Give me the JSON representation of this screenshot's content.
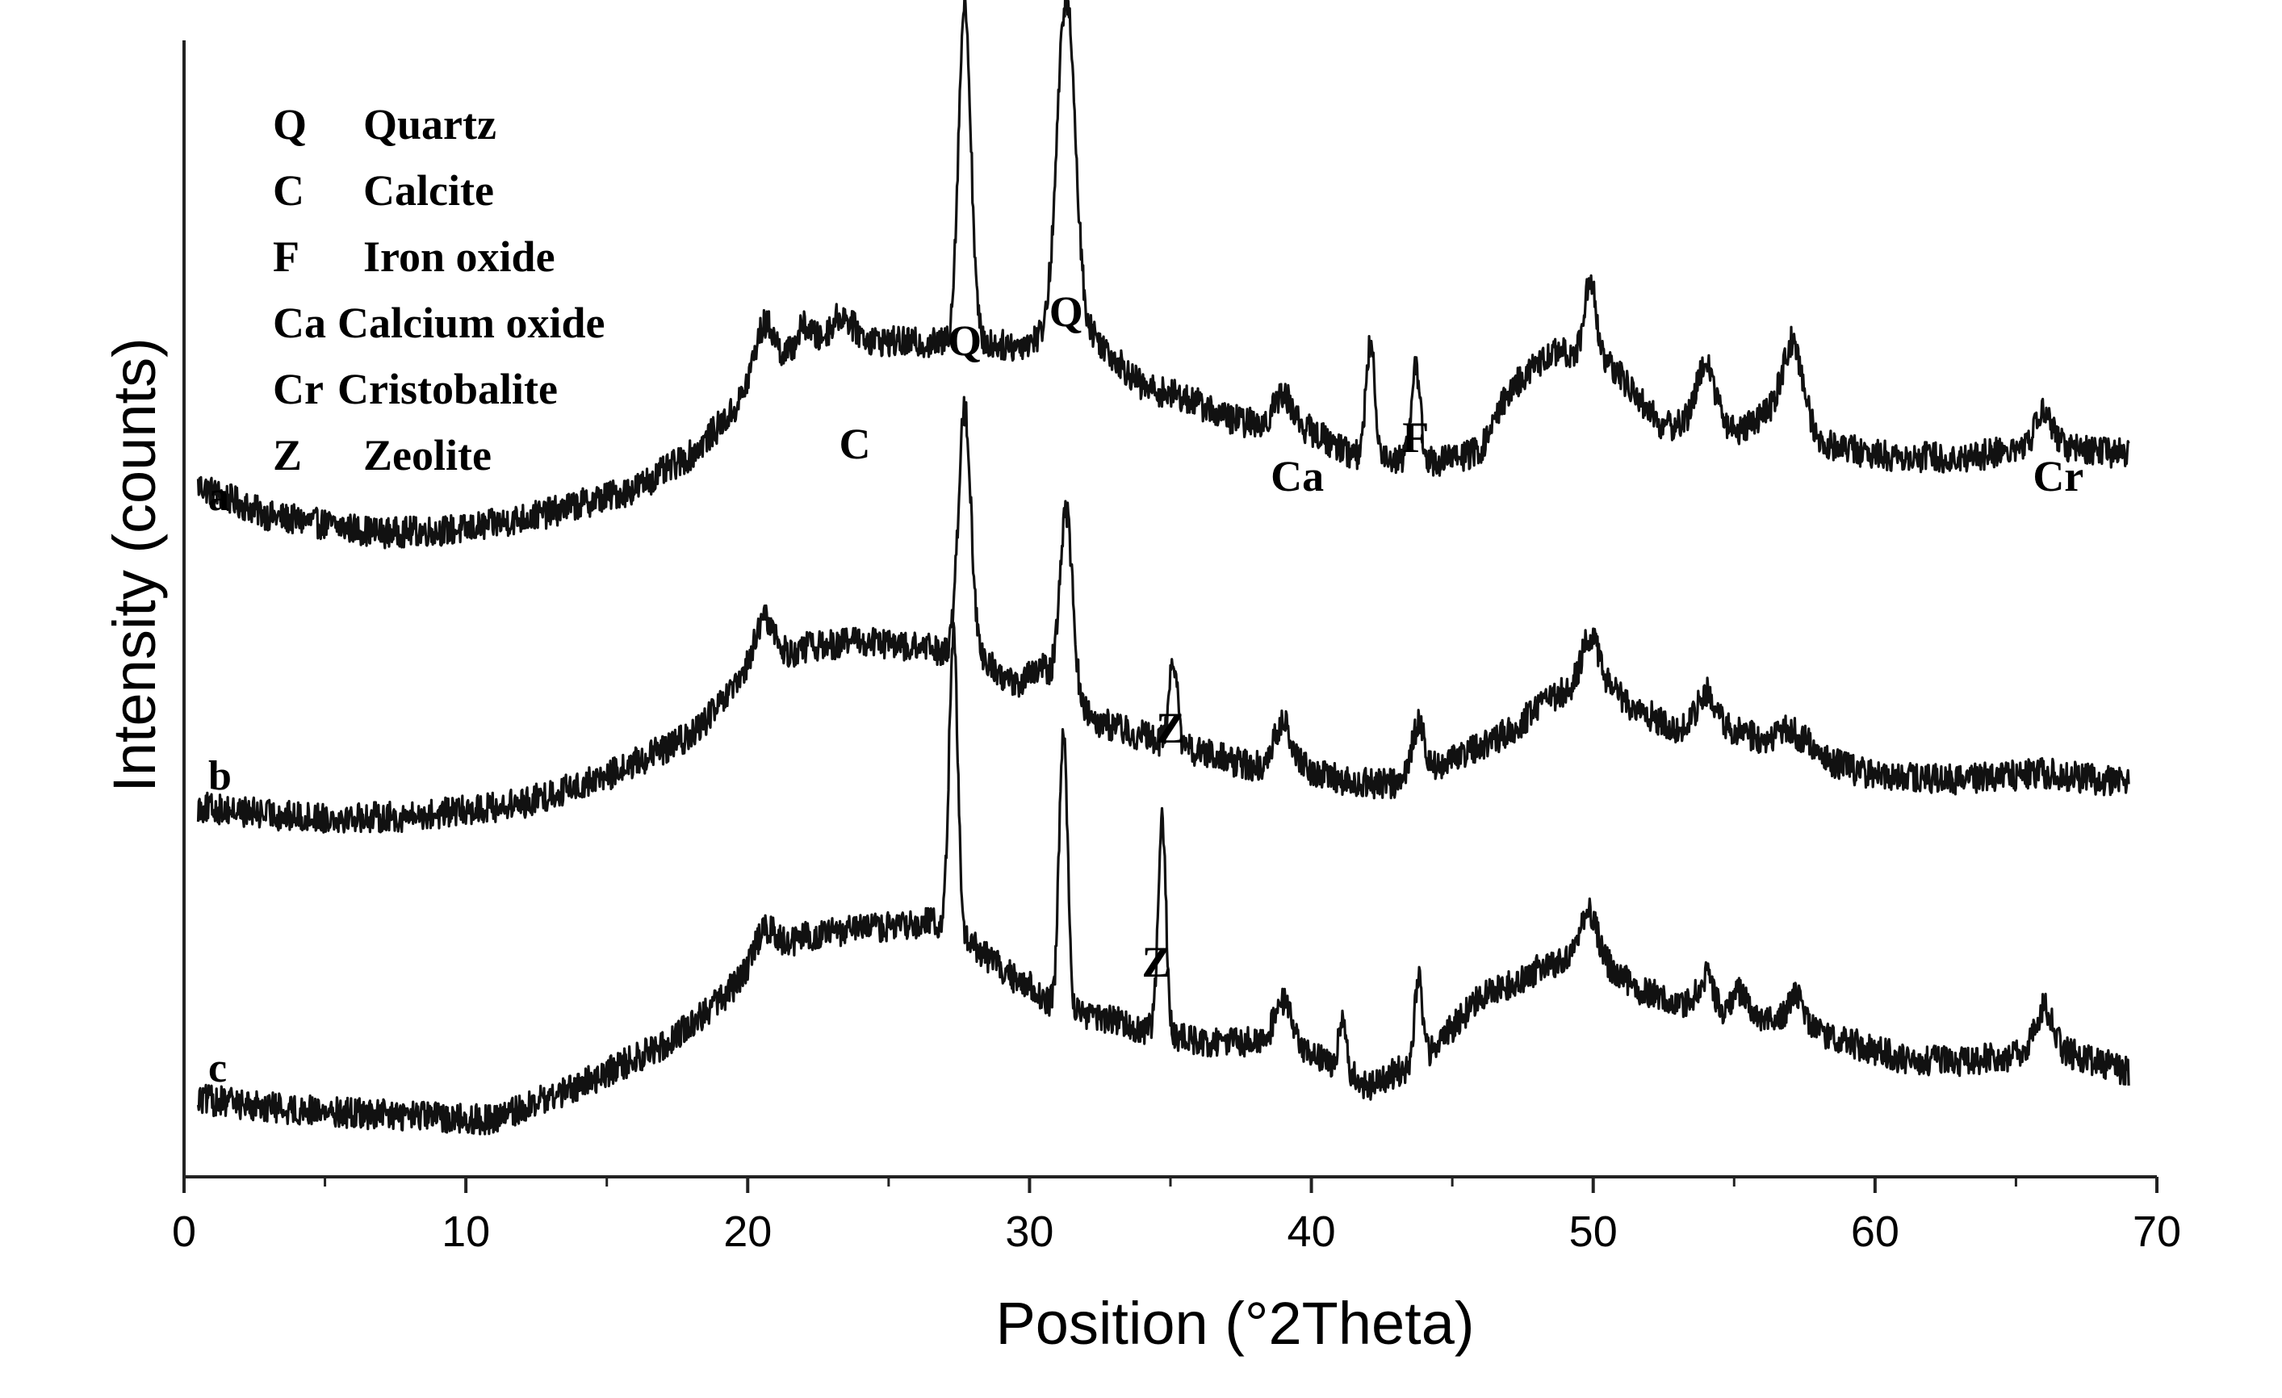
{
  "chart_data": {
    "type": "line",
    "title": "",
    "xlabel": "Position (°2Theta)",
    "ylabel": "Intensity (counts)",
    "xlim": [
      0,
      70
    ],
    "x_ticks": [
      "0",
      "10",
      "20",
      "30",
      "40",
      "50",
      "60",
      "70"
    ],
    "y_ticks": "none",
    "grid": false,
    "legend_position": "top-left",
    "legend": [
      {
        "symbol": "Q",
        "name": "Quartz"
      },
      {
        "symbol": "C",
        "name": "Calcite"
      },
      {
        "symbol": "F",
        "name": "Iron oxide"
      },
      {
        "symbol": "Ca",
        "name": "Calcium oxide"
      },
      {
        "symbol": "Cr",
        "name": "Cristobalite"
      },
      {
        "symbol": "Z",
        "name": "Zeolite"
      }
    ],
    "series": [
      {
        "name": "a",
        "baseline": [
          [
            0.5,
            3.3
          ],
          [
            3,
            2.4
          ],
          [
            7,
            1.9
          ],
          [
            10,
            2.0
          ],
          [
            13,
            2.5
          ],
          [
            16,
            3.2
          ],
          [
            18,
            4.2
          ],
          [
            19.5,
            5.5
          ],
          [
            20.2,
            6.3
          ],
          [
            21,
            6.8
          ],
          [
            22,
            7.3
          ],
          [
            24,
            7.6
          ],
          [
            26,
            7.5
          ],
          [
            27,
            7.5
          ],
          [
            28.3,
            7.5
          ],
          [
            29.5,
            7.4
          ],
          [
            30.5,
            7.7
          ],
          [
            32.3,
            7.7
          ],
          [
            34,
            6.2
          ],
          [
            35.5,
            5.9
          ],
          [
            37,
            5.3
          ],
          [
            38.5,
            5.0
          ],
          [
            40,
            4.9
          ],
          [
            41.5,
            4.2
          ],
          [
            43,
            4.1
          ],
          [
            44.5,
            4.0
          ],
          [
            46,
            4.3
          ],
          [
            47,
            6.1
          ],
          [
            48.5,
            7.2
          ],
          [
            50,
            7.2
          ],
          [
            51,
            6.5
          ],
          [
            52.5,
            5.0
          ],
          [
            54,
            5.4
          ],
          [
            55,
            4.9
          ],
          [
            56,
            5.3
          ],
          [
            57,
            6.0
          ],
          [
            58,
            4.6
          ],
          [
            60,
            4.2
          ],
          [
            63,
            4.1
          ],
          [
            66,
            4.5
          ],
          [
            69,
            4.2
          ]
        ],
        "peaks": [
          [
            20.6,
            1.5,
            0.35
          ],
          [
            22.0,
            0.7,
            0.3
          ],
          [
            23.3,
            0.8,
            0.4
          ],
          [
            27.7,
            10.0,
            0.22
          ],
          [
            31.3,
            10.0,
            0.32
          ],
          [
            39.0,
            1.0,
            0.35
          ],
          [
            42.1,
            3.3,
            0.16
          ],
          [
            43.7,
            2.7,
            0.16
          ],
          [
            49.9,
            2.2,
            0.2
          ],
          [
            54.0,
            1.6,
            0.3
          ],
          [
            57.1,
            1.6,
            0.35
          ],
          [
            66.0,
            1.0,
            0.3
          ]
        ]
      },
      {
        "name": "b",
        "baseline": [
          [
            0.5,
            2.1
          ],
          [
            4,
            1.8
          ],
          [
            8,
            1.8
          ],
          [
            12,
            2.2
          ],
          [
            15,
            3.0
          ],
          [
            18,
            4.2
          ],
          [
            20,
            6.0
          ],
          [
            22,
            6.8
          ],
          [
            24,
            7.0
          ],
          [
            26,
            6.8
          ],
          [
            27.2,
            6.7
          ],
          [
            28.2,
            6.5
          ],
          [
            29.5,
            5.7
          ],
          [
            30.5,
            6.2
          ],
          [
            32.5,
            4.6
          ],
          [
            34,
            4.2
          ],
          [
            36,
            3.7
          ],
          [
            38,
            3.3
          ],
          [
            40,
            3.2
          ],
          [
            41.5,
            2.8
          ],
          [
            43,
            2.8
          ],
          [
            45,
            3.5
          ],
          [
            47,
            4.3
          ],
          [
            48.5,
            5.3
          ],
          [
            50,
            6.0
          ],
          [
            51.5,
            5.0
          ],
          [
            53,
            4.4
          ],
          [
            54,
            4.6
          ],
          [
            56,
            4.1
          ],
          [
            57,
            4.4
          ],
          [
            58.5,
            3.4
          ],
          [
            60,
            3.0
          ],
          [
            63,
            2.9
          ],
          [
            66,
            3.1
          ],
          [
            69,
            2.8
          ]
        ],
        "peaks": [
          [
            20.6,
            1.4,
            0.35
          ],
          [
            27.7,
            7.2,
            0.22
          ],
          [
            31.3,
            5.3,
            0.22
          ],
          [
            35.1,
            2.6,
            0.14
          ],
          [
            39.0,
            1.4,
            0.3
          ],
          [
            43.8,
            1.5,
            0.22
          ],
          [
            49.9,
            1.2,
            0.3
          ],
          [
            54.0,
            0.9,
            0.3
          ]
        ]
      },
      {
        "name": "c",
        "baseline": [
          [
            0.5,
            2.0
          ],
          [
            4,
            1.7
          ],
          [
            8,
            1.5
          ],
          [
            11,
            1.4
          ],
          [
            14,
            2.4
          ],
          [
            17,
            3.6
          ],
          [
            19,
            4.9
          ],
          [
            20.5,
            6.2
          ],
          [
            22,
            6.8
          ],
          [
            24,
            7.0
          ],
          [
            26,
            7.2
          ],
          [
            27,
            7.2
          ],
          [
            28.2,
            6.4
          ],
          [
            29.2,
            5.7
          ],
          [
            30.3,
            5.2
          ],
          [
            31,
            4.6
          ],
          [
            33,
            4.3
          ],
          [
            34.5,
            4.0
          ],
          [
            36,
            3.7
          ],
          [
            38,
            3.7
          ],
          [
            40,
            3.4
          ],
          [
            42,
            2.4
          ],
          [
            44,
            3.2
          ],
          [
            46,
            5.0
          ],
          [
            48,
            5.8
          ],
          [
            50,
            6.3
          ],
          [
            51.5,
            5.3
          ],
          [
            53,
            4.8
          ],
          [
            55,
            4.4
          ],
          [
            57,
            4.2
          ],
          [
            59,
            3.7
          ],
          [
            61,
            3.2
          ],
          [
            63,
            3.1
          ],
          [
            65,
            3.3
          ],
          [
            66,
            3.6
          ],
          [
            67.5,
            3.2
          ],
          [
            69,
            2.8
          ]
        ],
        "peaks": [
          [
            20.6,
            0.8,
            0.35
          ],
          [
            27.3,
            8.8,
            0.15
          ],
          [
            31.2,
            8.3,
            0.15
          ],
          [
            34.7,
            6.4,
            0.14
          ],
          [
            39.0,
            1.4,
            0.3
          ],
          [
            41.1,
            1.4,
            0.14
          ],
          [
            43.8,
            2.6,
            0.13
          ],
          [
            49.8,
            1.3,
            0.3
          ],
          [
            54.0,
            1.0,
            0.3
          ],
          [
            55.2,
            0.8,
            0.25
          ],
          [
            57.2,
            0.9,
            0.3
          ],
          [
            66.0,
            1.1,
            0.3
          ]
        ]
      }
    ],
    "peak_annotations": [
      {
        "label": "Q",
        "series": "a",
        "x": 27.7
      },
      {
        "label": "Q",
        "series": "a",
        "x": 31.3
      },
      {
        "label": "C",
        "series": "a",
        "x": 23.8
      },
      {
        "label": "Ca",
        "series": "a",
        "x": 39.5
      },
      {
        "label": "F",
        "series": "a",
        "x": 43.7
      },
      {
        "label": "Cr",
        "series": "a",
        "x": 66.5
      },
      {
        "label": "Z",
        "series": "b",
        "x": 35.0
      },
      {
        "label": "Z",
        "series": "c",
        "x": 34.5
      }
    ]
  }
}
